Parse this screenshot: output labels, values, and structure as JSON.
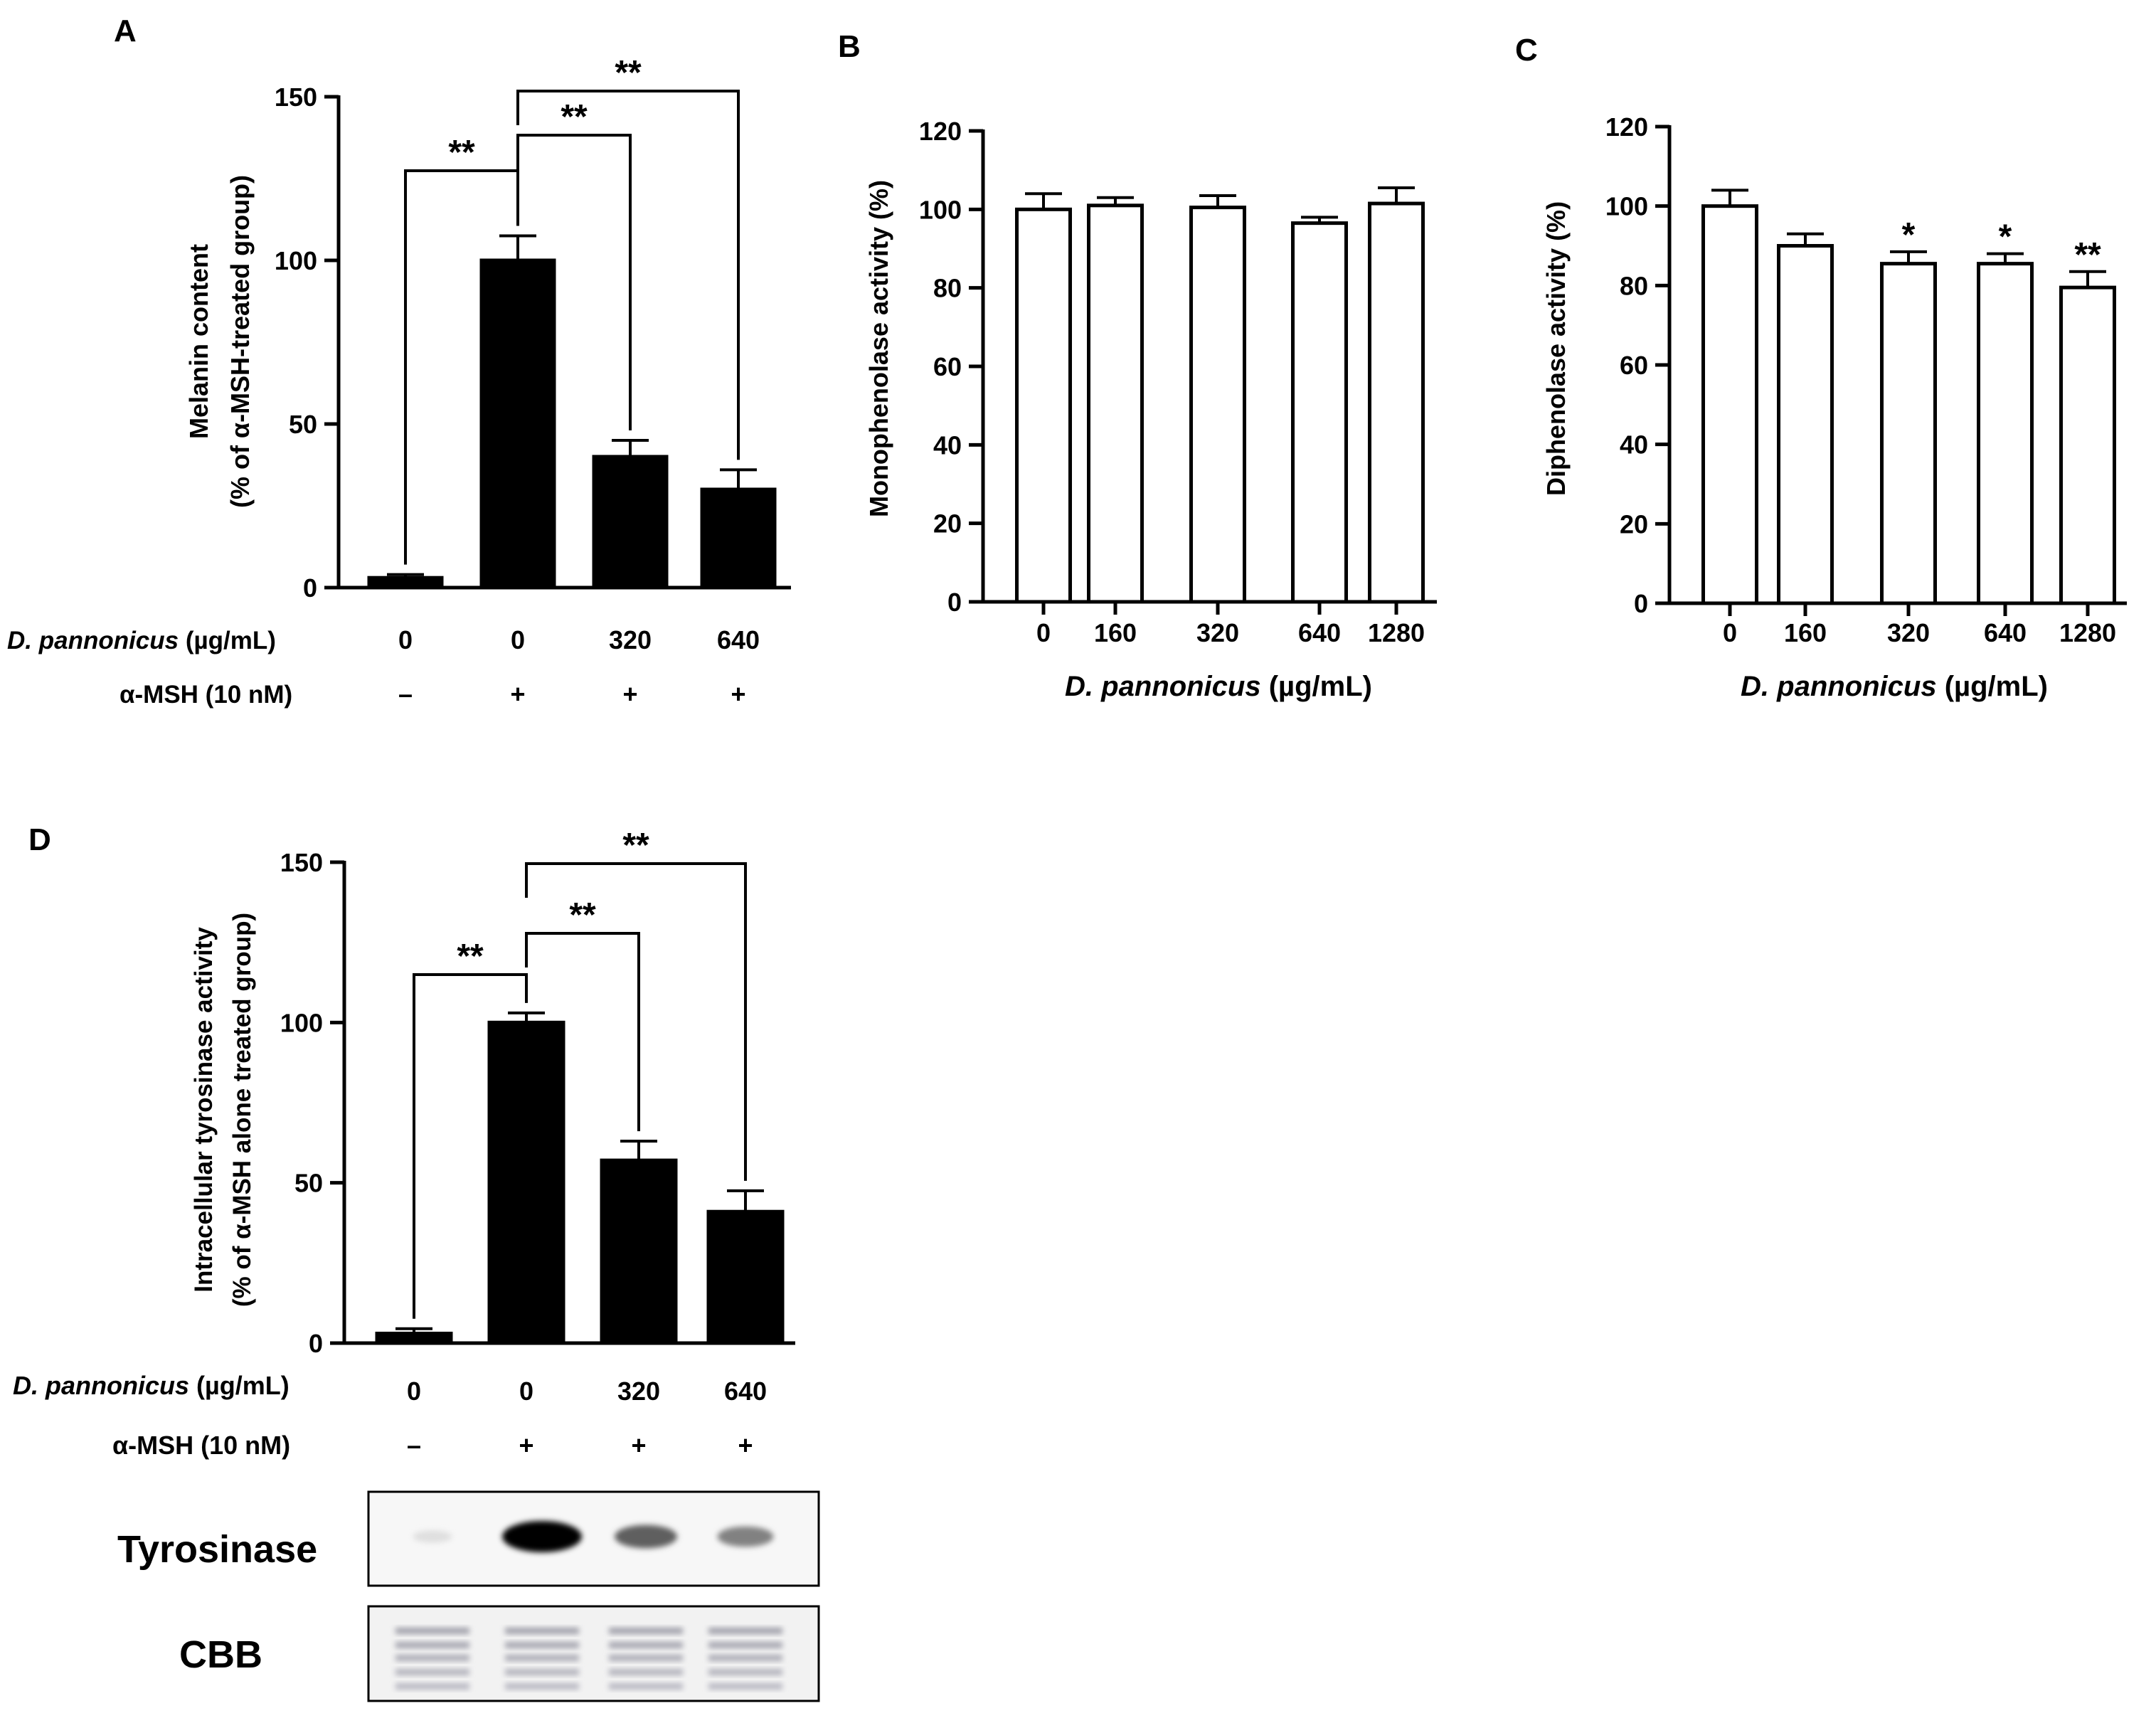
{
  "chart_data": [
    {
      "panel": "A",
      "type": "bar",
      "categories": [
        "0",
        "0",
        "320",
        "640"
      ],
      "values": [
        3,
        100,
        40,
        30
      ],
      "errors": [
        1,
        7.5,
        5,
        6
      ],
      "ylim": [
        0,
        150
      ],
      "yticks": [
        "0",
        "50",
        "100",
        "150"
      ],
      "ylabel": [
        "Melanin content",
        "(% of α-MSH-treated group)"
      ],
      "row_labels": {
        "dose_italic": "D. pannonicus",
        "dose_unit": " (µg/mL)",
        "msh": "α-MSH (10 nM)"
      },
      "msh_signs": [
        "–",
        "+",
        "+",
        "+"
      ],
      "bar_color": "#000000",
      "significance": [
        {
          "from": 0,
          "to": 1,
          "label": "**"
        },
        {
          "from": 1,
          "to": 2,
          "label": "**"
        },
        {
          "from": 1,
          "to": 3,
          "label": "**"
        }
      ]
    },
    {
      "panel": "B",
      "type": "bar",
      "categories": [
        "0",
        "160",
        "320",
        "640",
        "1280"
      ],
      "values": [
        100,
        101,
        100.5,
        96.5,
        101.5
      ],
      "errors": [
        4,
        2,
        3,
        1.5,
        4
      ],
      "ylim": [
        0,
        120
      ],
      "yticks": [
        "0",
        "20",
        "40",
        "60",
        "80",
        "100",
        "120"
      ],
      "ylabel": [
        "Monophenolase activity (%)"
      ],
      "xlabel_italic": "D. pannonicus",
      "xlabel_unit": " (µg/mL)",
      "bar_color": "#ffffff",
      "stars": [
        "",
        "",
        "",
        "",
        ""
      ]
    },
    {
      "panel": "C",
      "type": "bar",
      "categories": [
        "0",
        "160",
        "320",
        "640",
        "1280"
      ],
      "values": [
        100,
        90,
        85.5,
        85.5,
        79.5
      ],
      "errors": [
        4,
        3,
        3,
        2.5,
        4
      ],
      "ylim": [
        0,
        120
      ],
      "yticks": [
        "0",
        "20",
        "40",
        "60",
        "80",
        "100",
        "120"
      ],
      "ylabel": [
        "Diphenolase activity (%)"
      ],
      "xlabel_italic": "D. pannonicus",
      "xlabel_unit": " (µg/mL)",
      "bar_color": "#ffffff",
      "stars": [
        "",
        "",
        "*",
        "*",
        "**"
      ]
    },
    {
      "panel": "D",
      "type": "bar",
      "categories": [
        "0",
        "0",
        "320",
        "640"
      ],
      "values": [
        3,
        100,
        57,
        41
      ],
      "errors": [
        1.5,
        3,
        6,
        6.5
      ],
      "ylim": [
        0,
        150
      ],
      "yticks": [
        "0",
        "50",
        "100",
        "150"
      ],
      "ylabel": [
        "Intracellular tyrosinase activity",
        "(% of α-MSH alone treated group)"
      ],
      "row_labels": {
        "dose_italic": "D. pannonicus",
        "dose_unit": " (µg/mL)",
        "msh": "α-MSH (10 nM)"
      },
      "msh_signs": [
        "–",
        "+",
        "+",
        "+"
      ],
      "bar_color": "#000000",
      "significance": [
        {
          "from": 0,
          "to": 1,
          "label": "**"
        },
        {
          "from": 1,
          "to": 2,
          "label": "**"
        },
        {
          "from": 1,
          "to": 3,
          "label": "**"
        }
      ],
      "blot": {
        "tyrosinase_label": "Tyrosinase",
        "cbb_label": "CBB",
        "tyrosinase_band_intensity": [
          0.05,
          1.0,
          0.6,
          0.45
        ],
        "cbb_band_intensity": [
          0.5,
          0.5,
          0.5,
          0.5
        ]
      }
    }
  ]
}
